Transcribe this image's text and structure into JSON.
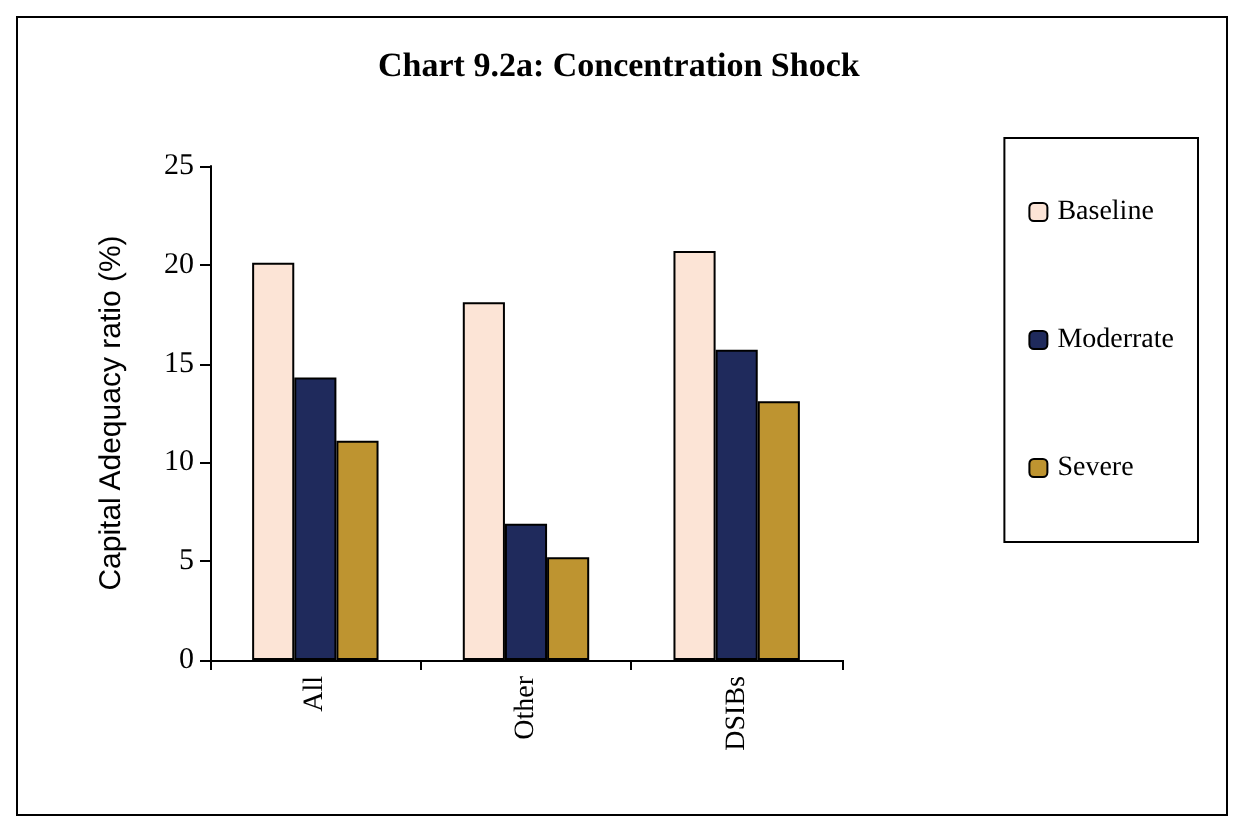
{
  "chart_data": {
    "type": "bar",
    "title": "Chart 9.2a: Concentration Shock",
    "ylabel": "Capital Adequacy ratio (%)",
    "categories": [
      "All",
      "Other",
      "DSIBs"
    ],
    "series": [
      {
        "name": "Baseline",
        "color": "#fce4d6",
        "values": [
          20.1,
          18.1,
          20.7
        ]
      },
      {
        "name": "Moderrate",
        "color": "#1f2a5c",
        "values": [
          14.3,
          6.9,
          15.7
        ]
      },
      {
        "name": "Severe",
        "color": "#be9430",
        "values": [
          11.1,
          5.2,
          13.1
        ]
      }
    ],
    "ylim": [
      0,
      25
    ],
    "yticks": [
      0,
      5,
      10,
      15,
      20,
      25
    ],
    "grid": false,
    "legend": "right"
  }
}
